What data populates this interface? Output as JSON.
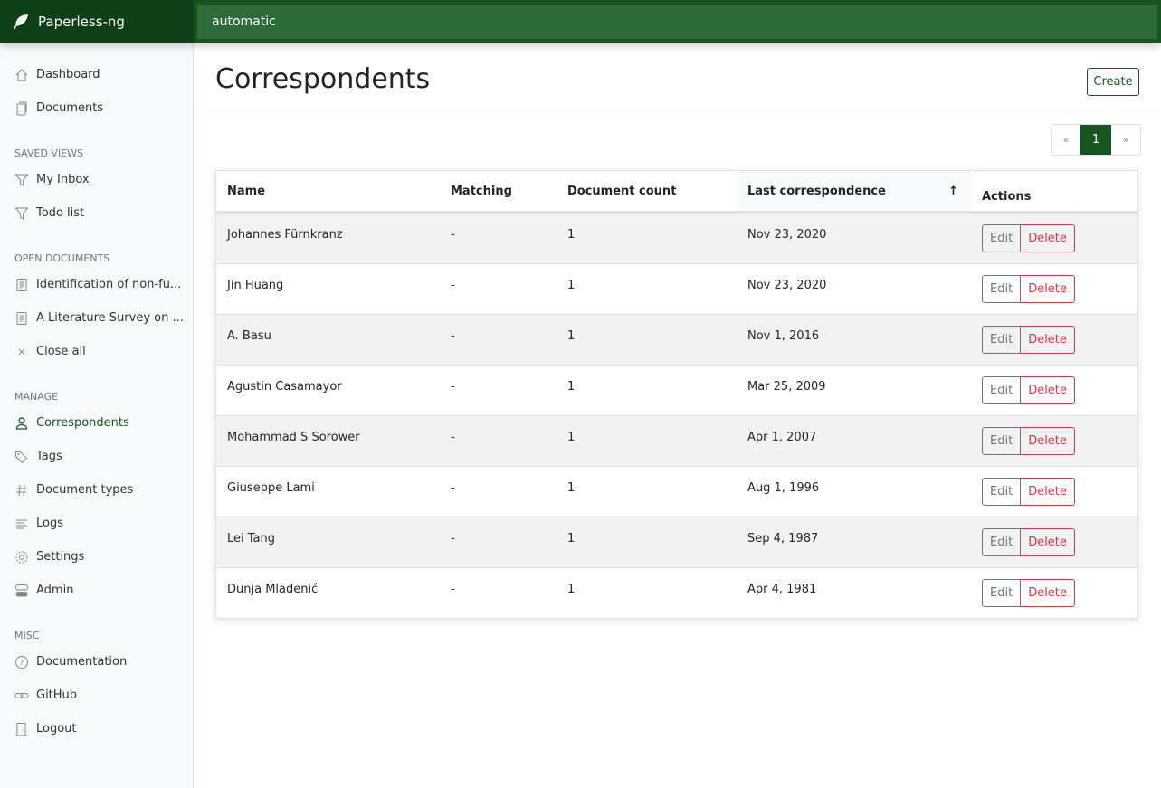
{
  "app": {
    "title": "Paperless-ng",
    "search_value": "automatic"
  },
  "sidebar": {
    "top": [
      {
        "label": "Dashboard",
        "icon": "house-icon"
      },
      {
        "label": "Documents",
        "icon": "files-icon"
      }
    ],
    "saved_views": {
      "heading": "Saved views",
      "items": [
        {
          "label": "My Inbox",
          "icon": "funnel-icon"
        },
        {
          "label": "Todo list",
          "icon": "funnel-icon"
        }
      ]
    },
    "open_documents": {
      "heading": "Open documents",
      "items": [
        {
          "label": "Identification of non-fu...",
          "icon": "file-text-icon"
        },
        {
          "label": "A Literature Survey on ...",
          "icon": "file-text-icon"
        },
        {
          "label": "Close all",
          "icon": "x-icon"
        }
      ]
    },
    "manage": {
      "heading": "Manage",
      "items": [
        {
          "label": "Correspondents",
          "icon": "person-icon",
          "active": true
        },
        {
          "label": "Tags",
          "icon": "tags-icon"
        },
        {
          "label": "Document types",
          "icon": "hash-icon"
        },
        {
          "label": "Logs",
          "icon": "text-left-icon"
        },
        {
          "label": "Settings",
          "icon": "gear-icon"
        },
        {
          "label": "Admin",
          "icon": "toggles-icon"
        }
      ]
    },
    "misc": {
      "heading": "Misc",
      "items": [
        {
          "label": "Documentation",
          "icon": "question-circle-icon"
        },
        {
          "label": "GitHub",
          "icon": "link-icon"
        },
        {
          "label": "Logout",
          "icon": "door-icon"
        }
      ]
    }
  },
  "main": {
    "title": "Correspondents",
    "create_label": "Create",
    "pagination": {
      "prev": "«",
      "current": "1",
      "next": "»"
    },
    "table": {
      "columns": [
        "Name",
        "Matching",
        "Document count",
        "Last correspondence",
        "Actions"
      ],
      "sort_indicator": "↑",
      "edit_label": "Edit",
      "delete_label": "Delete",
      "rows": [
        [
          "Johannes Fürnkranz",
          "-",
          "1",
          "Nov 23, 2020"
        ],
        [
          "Jin Huang",
          "-",
          "1",
          "Nov 23, 2020"
        ],
        [
          "A. Basu",
          "-",
          "1",
          "Nov 1, 2016"
        ],
        [
          "Agustin Casamayor",
          "-",
          "1",
          "Mar 25, 2009"
        ],
        [
          "Mohammad S Sorower",
          "-",
          "1",
          "Apr 1, 2007"
        ],
        [
          "Giuseppe Lami",
          "-",
          "1",
          "Aug 1, 1996"
        ],
        [
          "Lei Tang",
          "-",
          "1",
          "Sep 4, 1987"
        ],
        [
          "Dunja Mladenić",
          "-",
          "1",
          "Apr 4, 1981"
        ]
      ]
    }
  },
  "colors": {
    "primary": "#17541f",
    "danger": "#dc3545"
  }
}
